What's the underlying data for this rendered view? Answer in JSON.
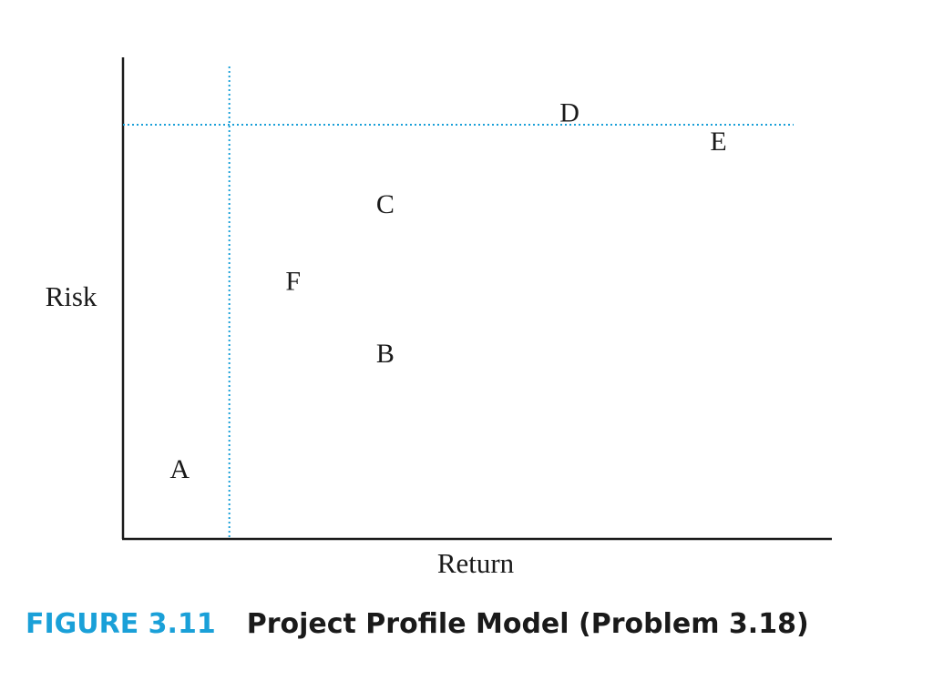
{
  "chart_data": {
    "type": "scatter",
    "xlabel": "Return",
    "ylabel": "Risk",
    "grid": false,
    "points": [
      {
        "label": "A",
        "x": 0.08,
        "y": 0.14
      },
      {
        "label": "B",
        "x": 0.37,
        "y": 0.38
      },
      {
        "label": "C",
        "x": 0.37,
        "y": 0.69
      },
      {
        "label": "D",
        "x": 0.63,
        "y": 0.88
      },
      {
        "label": "E",
        "x": 0.84,
        "y": 0.82
      },
      {
        "label": "F",
        "x": 0.24,
        "y": 0.53
      }
    ],
    "reference_lines": [
      {
        "orientation": "vertical",
        "x": 0.15,
        "style": "dotted",
        "color": "#1aa0d8"
      },
      {
        "orientation": "horizontal",
        "y": 0.86,
        "style": "dotted",
        "color": "#1aa0d8"
      }
    ]
  },
  "caption": {
    "number": "FIGURE 3.11",
    "title": "Project Profile Model (Problem 3.18)"
  },
  "colors": {
    "accent": "#1aa0d8",
    "axis": "#1a1a1a"
  }
}
